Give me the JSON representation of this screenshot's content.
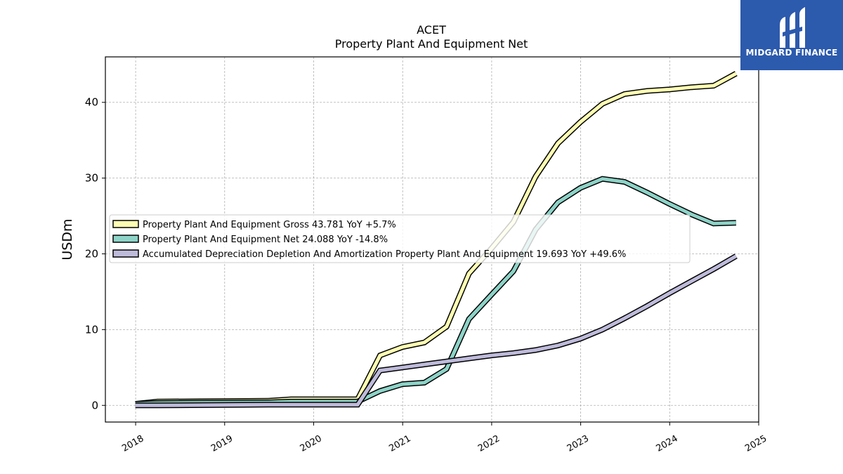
{
  "chart_data": {
    "type": "line",
    "title": "ACET",
    "subtitle": "Property Plant And Equipment Net",
    "xlabel": "",
    "ylabel": "USDm",
    "xlim": [
      2017.66,
      2025.0
    ],
    "ylim": [
      -2.2,
      46.0
    ],
    "x_ticks": [
      "2018",
      "2019",
      "2020",
      "2021",
      "2022",
      "2023",
      "2024",
      "2025"
    ],
    "y_ticks": [
      0,
      10,
      20,
      30,
      40
    ],
    "grid": true,
    "legend_position": "center-left",
    "series": [
      {
        "name": "Property Plant And Equipment Gross  43.781 YoY +5.7%",
        "color": "#ffffb3",
        "x": [
          "2017-12-31",
          "2018-03-31",
          "2019-06-30",
          "2019-09-30",
          "2020-06-30",
          "2020-09-30",
          "2020-12-31",
          "2021-03-31",
          "2021-06-30",
          "2021-09-30",
          "2021-12-31",
          "2022-03-31",
          "2022-06-30",
          "2022-09-30",
          "2022-12-31",
          "2023-03-31",
          "2023-06-30",
          "2023-09-30",
          "2023-12-31",
          "2024-03-31",
          "2024-06-30",
          "2024-09-30"
        ],
        "values": [
          0.2,
          0.5,
          0.6,
          0.8,
          0.8,
          6.6,
          7.7,
          8.3,
          10.4,
          17.4,
          20.7,
          24.2,
          30.2,
          34.6,
          37.4,
          39.8,
          41.1,
          41.5,
          41.7,
          42.0,
          42.2,
          43.8
        ]
      },
      {
        "name": "Property Plant And Equipment Net  24.088 YoY -14.8%",
        "color": "#8dd3c7",
        "x": [
          "2017-12-31",
          "2018-03-31",
          "2019-06-30",
          "2019-09-30",
          "2020-06-30",
          "2020-09-30",
          "2020-12-31",
          "2021-03-31",
          "2021-06-30",
          "2021-09-30",
          "2021-12-31",
          "2022-03-31",
          "2022-06-30",
          "2022-09-30",
          "2022-12-31",
          "2023-03-31",
          "2023-06-30",
          "2023-09-30",
          "2023-12-31",
          "2024-03-31",
          "2024-06-30",
          "2024-09-30"
        ],
        "values": [
          0.2,
          0.3,
          0.4,
          0.5,
          0.5,
          1.9,
          2.8,
          3.0,
          4.8,
          11.4,
          14.6,
          17.7,
          23.2,
          26.8,
          28.7,
          29.9,
          29.5,
          28.1,
          26.6,
          25.2,
          24.0,
          24.1
        ]
      },
      {
        "name": "Accumulated Depreciation Depletion And Amortization Property Plant And Equipment  19.693 YoY +49.6%",
        "color": "#bebada",
        "x": [
          "2017-12-31",
          "2018-03-31",
          "2019-06-30",
          "2019-09-30",
          "2020-06-30",
          "2020-09-30",
          "2020-12-31",
          "2021-03-31",
          "2021-06-30",
          "2021-09-30",
          "2021-12-31",
          "2022-03-31",
          "2022-06-30",
          "2022-09-30",
          "2022-12-31",
          "2023-03-31",
          "2023-06-30",
          "2023-09-30",
          "2023-12-31",
          "2024-03-31",
          "2024-06-30",
          "2024-09-30"
        ],
        "values": [
          0.0,
          0.0,
          0.1,
          0.1,
          0.1,
          4.6,
          5.0,
          5.4,
          5.8,
          6.2,
          6.6,
          6.9,
          7.3,
          7.9,
          8.8,
          10.0,
          11.5,
          13.1,
          14.8,
          16.4,
          18.0,
          19.7
        ]
      }
    ]
  },
  "logo": {
    "text": "MIDGARD FINANCE"
  }
}
